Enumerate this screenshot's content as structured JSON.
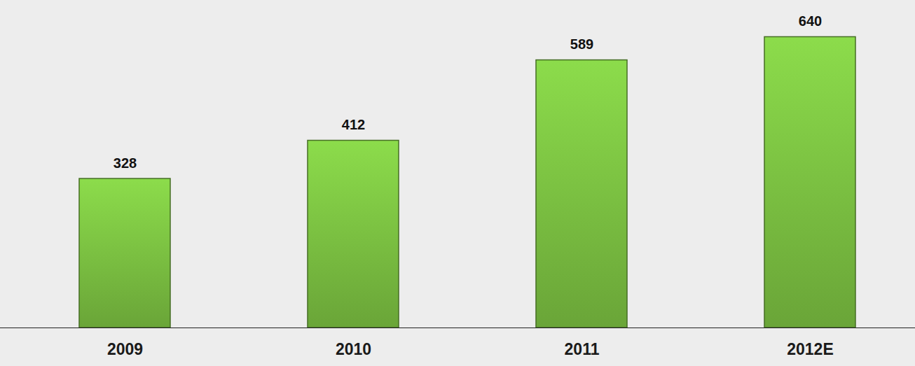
{
  "chart_data": {
    "type": "bar",
    "categories": [
      "2009",
      "2010",
      "2011",
      "2012E"
    ],
    "values": [
      328,
      412,
      589,
      640
    ],
    "color": "#7cc242",
    "ylim": [
      0,
      690
    ],
    "data_labels": true,
    "tick_labels": "x",
    "grid": false
  }
}
